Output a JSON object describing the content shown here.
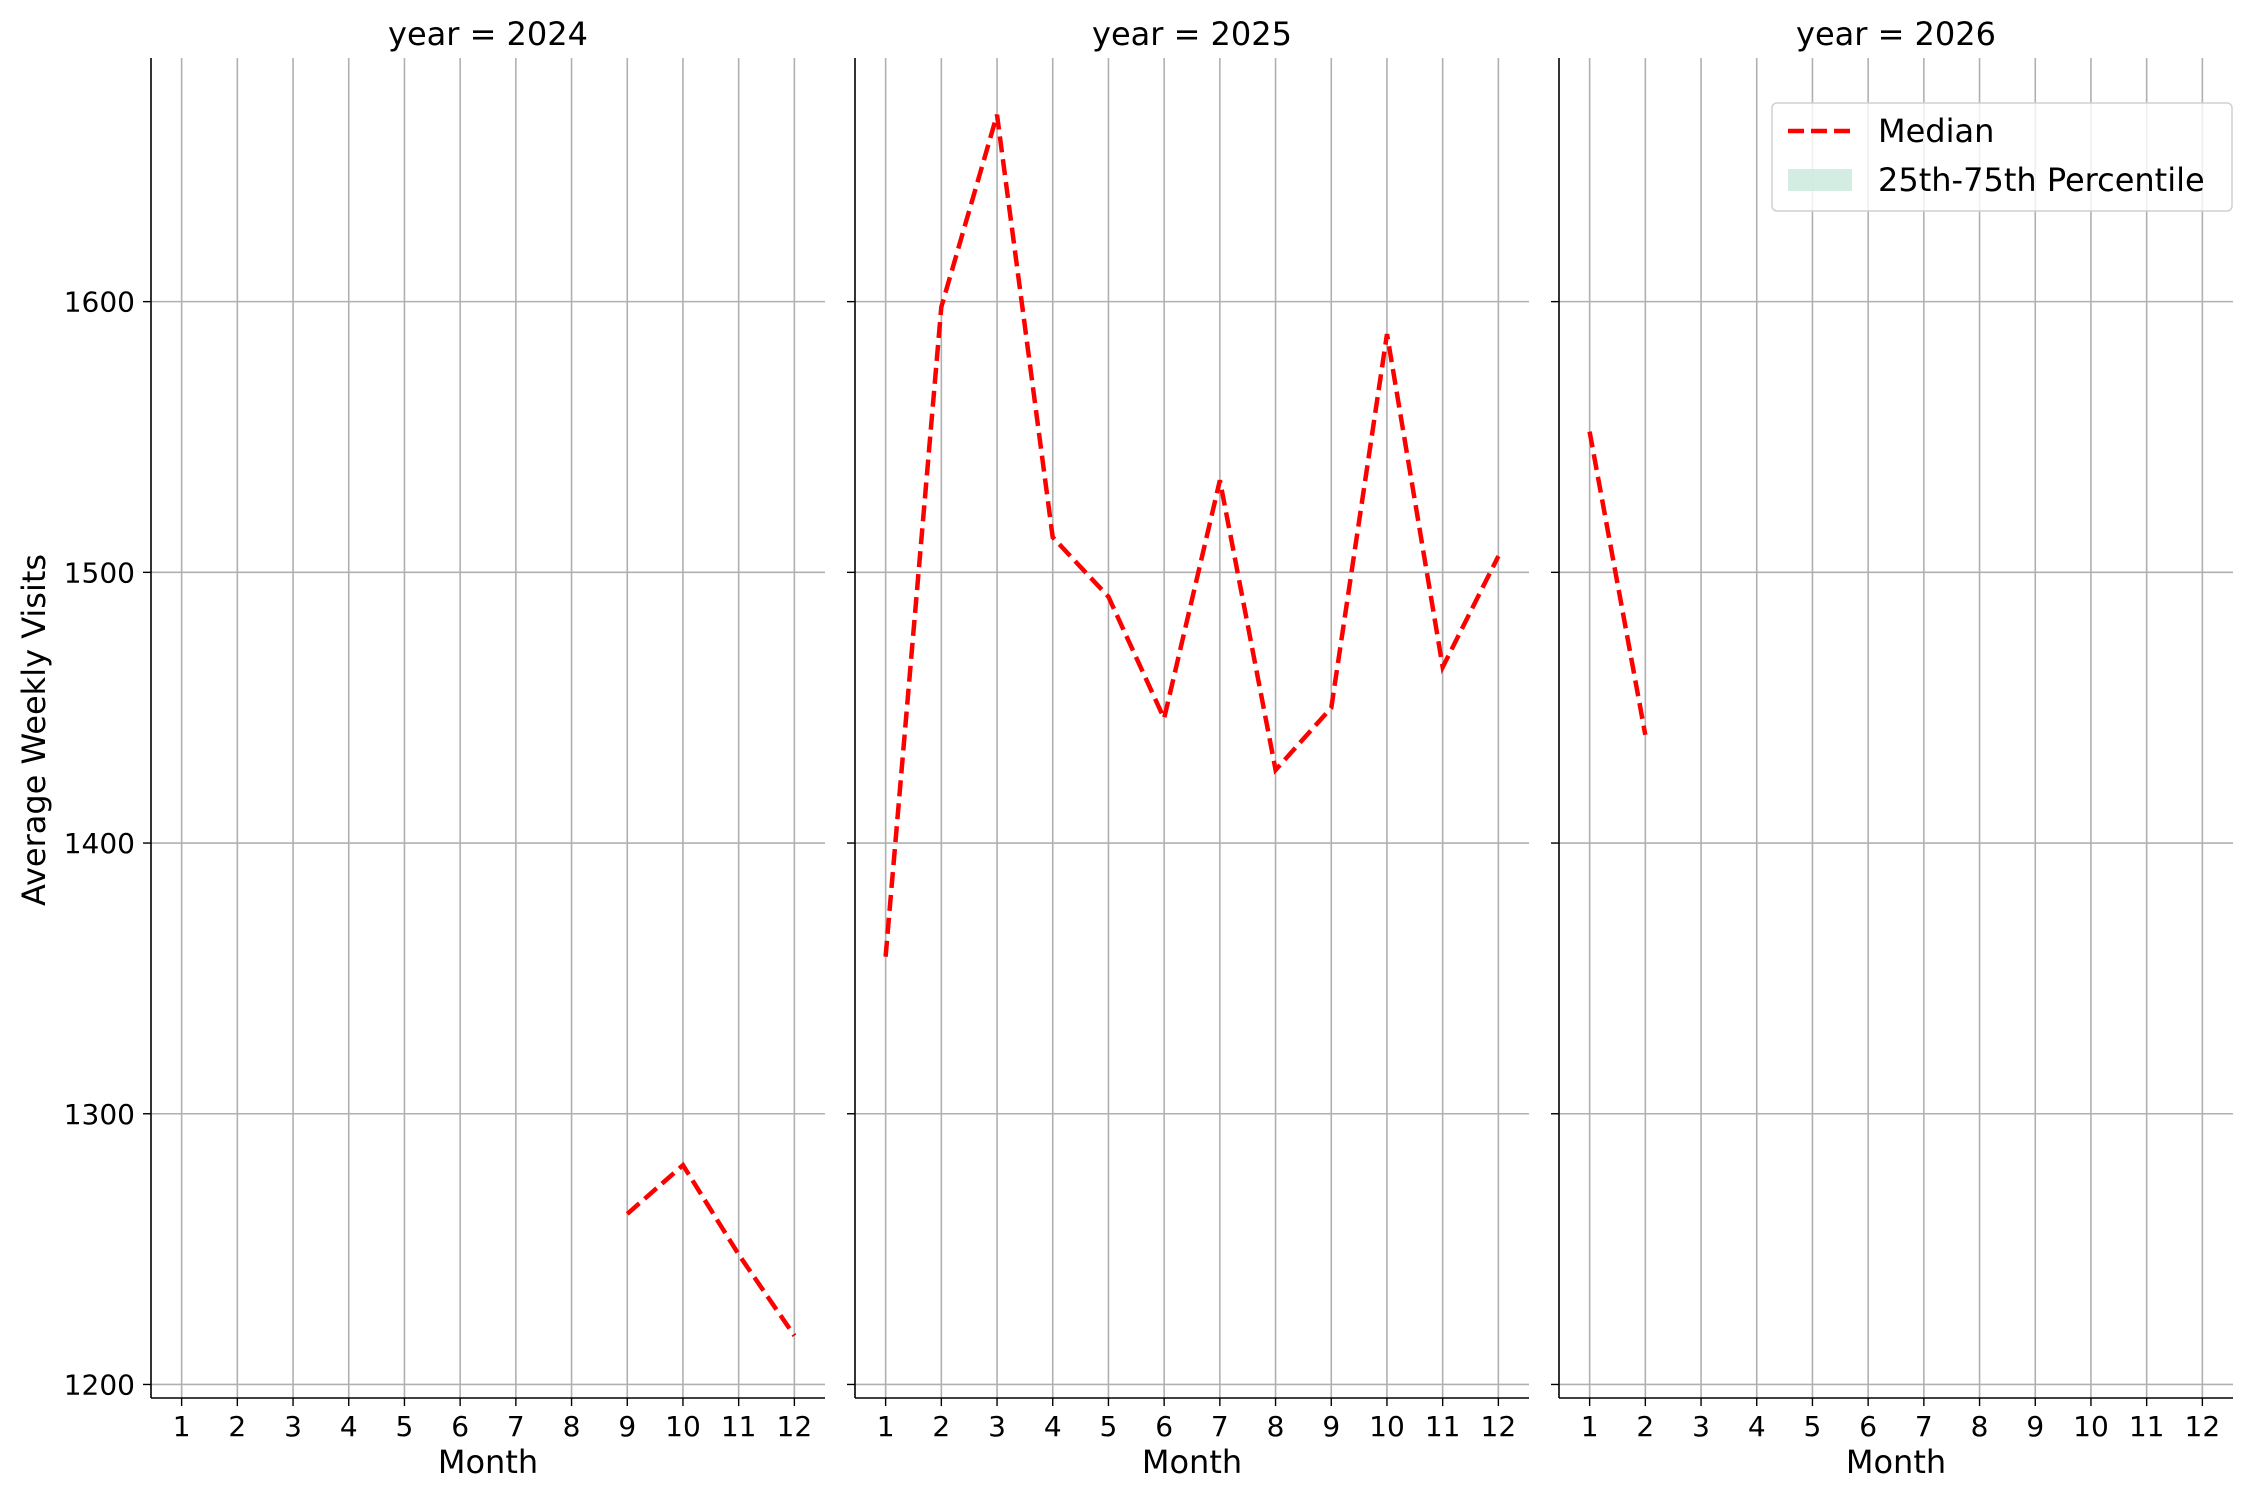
{
  "chart_data": {
    "type": "line",
    "facet_title_prefix": "year = ",
    "ylabel": "Average Weekly Visits",
    "xlabel": "Month",
    "ylim": [
      1195,
      1690
    ],
    "yticks": [
      1200,
      1300,
      1400,
      1500,
      1600
    ],
    "xticks": [
      1,
      2,
      3,
      4,
      5,
      6,
      7,
      8,
      9,
      10,
      11,
      12
    ],
    "xlim": [
      0.45,
      12.55
    ],
    "grid": true,
    "legend": {
      "placement": "top-right",
      "entries": [
        {
          "label": "Median",
          "style": "dashed-line",
          "color": "#ff0000"
        },
        {
          "label": "25th-75th Percentile",
          "style": "band",
          "color": "#c8e8dc"
        }
      ]
    },
    "facets": [
      {
        "year": "2024",
        "series": [
          {
            "name": "Median",
            "x": [
              9,
              10,
              11,
              12
            ],
            "y": [
              1263,
              1281,
              1248,
              1218
            ]
          }
        ]
      },
      {
        "year": "2025",
        "series": [
          {
            "name": "Median",
            "x": [
              1,
              2,
              3,
              4,
              5,
              6,
              7,
              8,
              9,
              10,
              11,
              12
            ],
            "y": [
              1358,
              1598,
              1669,
              1513,
              1491,
              1446,
              1534,
              1427,
              1450,
              1588,
              1465,
              1506
            ]
          }
        ]
      },
      {
        "year": "2026",
        "series": [
          {
            "name": "Median",
            "x": [
              1,
              2
            ],
            "y": [
              1552,
              1440
            ]
          }
        ]
      }
    ],
    "colors": {
      "median": "#ff0000",
      "grid": "#b0b0b0",
      "band": "#c8e8dc"
    }
  }
}
